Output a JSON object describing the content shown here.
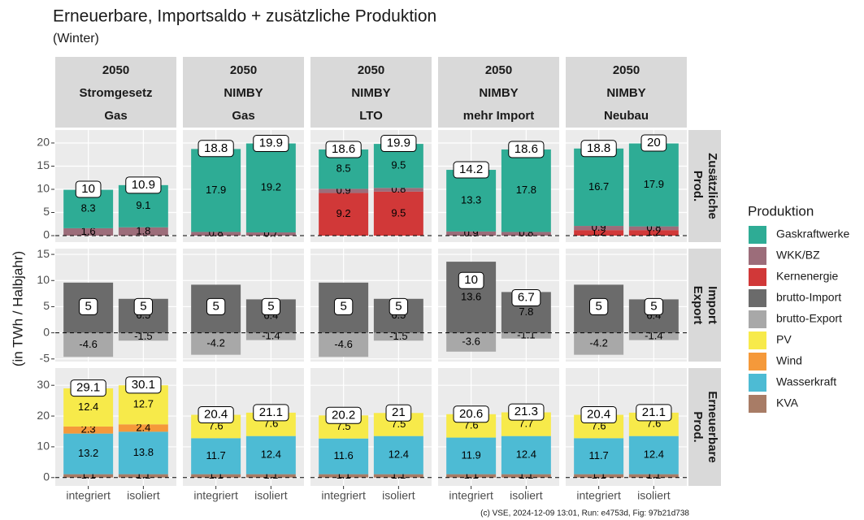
{
  "chart_data": {
    "type": "bar",
    "title": "Erneuerbare, Importsaldo + zusätzliche Produktion",
    "subtitle": "(Winter)",
    "y_label": "(in TWh / Halbjahr)",
    "caption": "(c) VSE, 2024-12-09 13:01, Run: e4753d, Fig: 97b21d738",
    "legend_title": "Produktion",
    "categories": [
      "integriert",
      "isoliert"
    ],
    "reference_line": 0,
    "grid": true,
    "series": [
      {
        "name": "Gaskraftwerke",
        "color": "#2eac95"
      },
      {
        "name": "WKK/BZ",
        "color": "#9c6d7a"
      },
      {
        "name": "Kernenergie",
        "color": "#d13838"
      },
      {
        "name": "brutto-Import",
        "color": "#6b6b6b"
      },
      {
        "name": "brutto-Export",
        "color": "#a8a8a8"
      },
      {
        "name": "PV",
        "color": "#f7ea4a"
      },
      {
        "name": "Wind",
        "color": "#f5993a"
      },
      {
        "name": "Wasserkraft",
        "color": "#4dbbd4"
      },
      {
        "name": "KVA",
        "color": "#a87c66"
      }
    ],
    "columns": [
      [
        "2050",
        "Stromgesetz",
        "Gas"
      ],
      [
        "2050",
        "NIMBY",
        "Gas"
      ],
      [
        "2050",
        "NIMBY",
        "LTO"
      ],
      [
        "2050",
        "NIMBY",
        "mehr Import"
      ],
      [
        "2050",
        "NIMBY",
        "Neubau"
      ]
    ],
    "rows": [
      {
        "label": [
          "Zusätzliche",
          "Prod."
        ],
        "ylim": [
          -1.4,
          22.8
        ],
        "yticks": [
          0,
          5,
          10,
          15,
          20
        ],
        "panels": [
          {
            "totals": [
              10,
              10.9
            ],
            "values": [
              [
                8.3,
                9.1
              ],
              [
                1.6,
                1.8
              ],
              null,
              null,
              null,
              null,
              null,
              null,
              null
            ]
          },
          {
            "totals": [
              18.8,
              19.9
            ],
            "values": [
              [
                17.9,
                19.2
              ],
              [
                0.8,
                0.7
              ],
              null,
              null,
              null,
              null,
              null,
              null,
              null
            ]
          },
          {
            "totals": [
              18.6,
              19.9
            ],
            "values": [
              [
                8.5,
                9.5
              ],
              [
                0.9,
                0.8
              ],
              [
                9.2,
                9.5
              ],
              null,
              null,
              null,
              null,
              null,
              null
            ]
          },
          {
            "totals": [
              14.2,
              18.6
            ],
            "values": [
              [
                13.3,
                17.8
              ],
              [
                0.9,
                0.8
              ],
              null,
              null,
              null,
              null,
              null,
              null,
              null
            ]
          },
          {
            "totals": [
              18.8,
              20
            ],
            "values": [
              [
                16.7,
                17.9
              ],
              [
                0.9,
                0.8
              ],
              [
                1.2,
                1.2
              ],
              null,
              null,
              null,
              null,
              null,
              null
            ]
          }
        ]
      },
      {
        "label": [
          "Import",
          "Export"
        ],
        "ylim": [
          -5.5,
          16.1
        ],
        "yticks": [
          -5,
          0,
          5,
          10,
          15
        ],
        "panels": [
          {
            "totals": [
              5,
              5
            ],
            "values": [
              null,
              null,
              null,
              [
                9.6,
                6.5
              ],
              [
                -4.6,
                -1.5
              ],
              null,
              null,
              null,
              null
            ]
          },
          {
            "totals": [
              5,
              5
            ],
            "values": [
              null,
              null,
              null,
              [
                9.2,
                6.4
              ],
              [
                -4.2,
                -1.4
              ],
              null,
              null,
              null,
              null
            ]
          },
          {
            "totals": [
              5,
              5
            ],
            "values": [
              null,
              null,
              null,
              [
                9.6,
                6.5
              ],
              [
                -4.6,
                -1.5
              ],
              null,
              null,
              null,
              null
            ]
          },
          {
            "totals": [
              10,
              6.7
            ],
            "values": [
              null,
              null,
              null,
              [
                13.6,
                7.8
              ],
              [
                -3.6,
                -1.1
              ],
              null,
              null,
              null,
              null
            ]
          },
          {
            "totals": [
              5,
              5
            ],
            "values": [
              null,
              null,
              null,
              [
                9.2,
                6.4
              ],
              [
                -4.2,
                -1.4
              ],
              null,
              null,
              null,
              null
            ]
          }
        ]
      },
      {
        "label": [
          "Erneuerbare",
          "Prod."
        ],
        "ylim": [
          -2.7,
          35.6
        ],
        "yticks": [
          0,
          10,
          20,
          30
        ],
        "panels": [
          {
            "totals": [
              29.1,
              30.1
            ],
            "values": [
              null,
              null,
              null,
              null,
              null,
              [
                12.4,
                12.7
              ],
              [
                2.3,
                2.4
              ],
              [
                13.2,
                13.8
              ],
              [
                1.1,
                1.1
              ]
            ]
          },
          {
            "totals": [
              20.4,
              21.1
            ],
            "values": [
              null,
              null,
              null,
              null,
              null,
              [
                7.6,
                7.6
              ],
              null,
              [
                11.7,
                12.4
              ],
              [
                1.1,
                1.1
              ]
            ]
          },
          {
            "totals": [
              20.2,
              21
            ],
            "values": [
              null,
              null,
              null,
              null,
              null,
              [
                7.5,
                7.5
              ],
              null,
              [
                11.6,
                12.4
              ],
              [
                1.1,
                1.1
              ]
            ]
          },
          {
            "totals": [
              20.6,
              21.3
            ],
            "values": [
              null,
              null,
              null,
              null,
              null,
              [
                7.6,
                7.7
              ],
              null,
              [
                11.9,
                12.4
              ],
              [
                1.1,
                1.1
              ]
            ]
          },
          {
            "totals": [
              20.4,
              21.1
            ],
            "values": [
              null,
              null,
              null,
              null,
              null,
              [
                7.6,
                7.6
              ],
              null,
              [
                11.7,
                12.4
              ],
              [
                1.1,
                1.1
              ]
            ]
          }
        ]
      }
    ]
  }
}
